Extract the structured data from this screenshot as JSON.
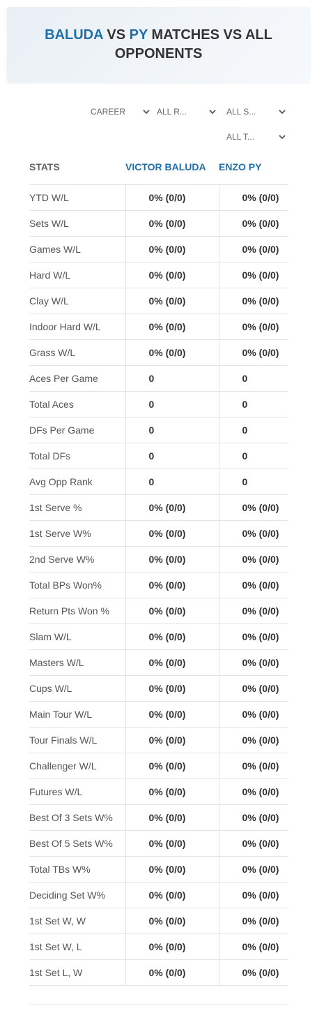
{
  "header": {
    "title": {
      "player1": "BALUDA",
      "vs": "VS",
      "player2": "PY",
      "rest": "MATCHES VS ALL OPPONENTS"
    }
  },
  "filters": [
    "CAREER",
    "ALL R...",
    "ALL S...",
    "ALL T..."
  ],
  "table": {
    "columns": [
      "STATS",
      "VICTOR BALUDA",
      "ENZO PY"
    ],
    "rows": [
      [
        "YTD W/L",
        "0% (0/0)",
        "0% (0/0)"
      ],
      [
        "Sets W/L",
        "0% (0/0)",
        "0% (0/0)"
      ],
      [
        "Games W/L",
        "0% (0/0)",
        "0% (0/0)"
      ],
      [
        "Hard W/L",
        "0% (0/0)",
        "0% (0/0)"
      ],
      [
        "Clay W/L",
        "0% (0/0)",
        "0% (0/0)"
      ],
      [
        "Indoor Hard W/L",
        "0% (0/0)",
        "0% (0/0)"
      ],
      [
        "Grass W/L",
        "0% (0/0)",
        "0% (0/0)"
      ],
      [
        "Aces Per Game",
        0,
        0
      ],
      [
        "Total Aces",
        0,
        0
      ],
      [
        "DFs Per Game",
        0,
        0
      ],
      [
        "Total DFs",
        0,
        0
      ],
      [
        "Avg Opp Rank",
        0,
        0
      ],
      [
        "1st Serve %",
        "0% (0/0)",
        "0% (0/0)"
      ],
      [
        "1st Serve W%",
        "0% (0/0)",
        "0% (0/0)"
      ],
      [
        "2nd Serve W%",
        "0% (0/0)",
        "0% (0/0)"
      ],
      [
        "Total BPs Won%",
        "0% (0/0)",
        "0% (0/0)"
      ],
      [
        "Return Pts Won %",
        "0% (0/0)",
        "0% (0/0)"
      ],
      [
        "Slam W/L",
        "0% (0/0)",
        "0% (0/0)"
      ],
      [
        "Masters W/L",
        "0% (0/0)",
        "0% (0/0)"
      ],
      [
        "Cups W/L",
        "0% (0/0)",
        "0% (0/0)"
      ],
      [
        "Main Tour W/L",
        "0% (0/0)",
        "0% (0/0)"
      ],
      [
        "Tour Finals W/L",
        "0% (0/0)",
        "0% (0/0)"
      ],
      [
        "Challenger W/L",
        "0% (0/0)",
        "0% (0/0)"
      ],
      [
        "Futures W/L",
        "0% (0/0)",
        "0% (0/0)"
      ],
      [
        "Best Of 3 Sets W%",
        "0% (0/0)",
        "0% (0/0)"
      ],
      [
        "Best Of 5 Sets W%",
        "0% (0/0)",
        "0% (0/0)"
      ],
      [
        "Total TBs W%",
        "0% (0/0)",
        "0% (0/0)"
      ],
      [
        "Deciding Set W%",
        "0% (0/0)",
        "0% (0/0)"
      ],
      [
        "1st Set W, W",
        "0% (0/0)",
        "0% (0/0)"
      ],
      [
        "1st Set W, L",
        "0% (0/0)",
        "0% (0/0)"
      ],
      [
        "1st Set L, W",
        "0% (0/0)",
        "0% (0/0)"
      ]
    ]
  }
}
